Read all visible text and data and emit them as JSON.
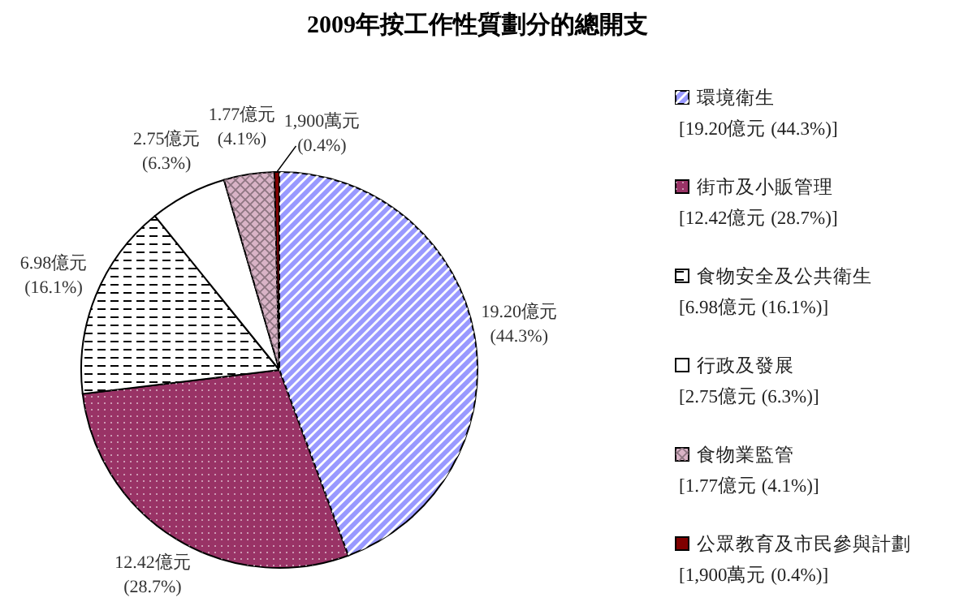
{
  "chart_data": {
    "type": "pie",
    "title": "2009年按工作性質劃分的總開支",
    "categories": [
      "環境衛生\n[19.20億元 (44.3%)]",
      "街市及小販管理\n[12.42億元 (28.7%)]",
      "食物安全及公共衛生\n[6.98億元 (16.1%)]",
      "行政及發展\n[2.75億元 (6.3%)]",
      "食物業監管\n[1.77億元 (4.1%)]",
      "公眾教育及市民參與計劃\n[1,900萬元 (0.4%)]"
    ],
    "values": [
      44.3,
      28.7,
      16.1,
      6.3,
      4.1,
      0.4
    ],
    "value_labels": [
      "19.20億元\n(44.3%)",
      "12.42億元\n(28.7%)",
      "6.98億元\n(16.1%)",
      "2.75億元\n(6.3%)",
      "1.77億元\n(4.1%)",
      "1,900萬元\n(0.4%)"
    ],
    "colors": [
      "#9999ff",
      "#993366",
      "#ffffff",
      "#ffffff",
      "#d9b3c6",
      "#800000"
    ],
    "legend": "right"
  }
}
